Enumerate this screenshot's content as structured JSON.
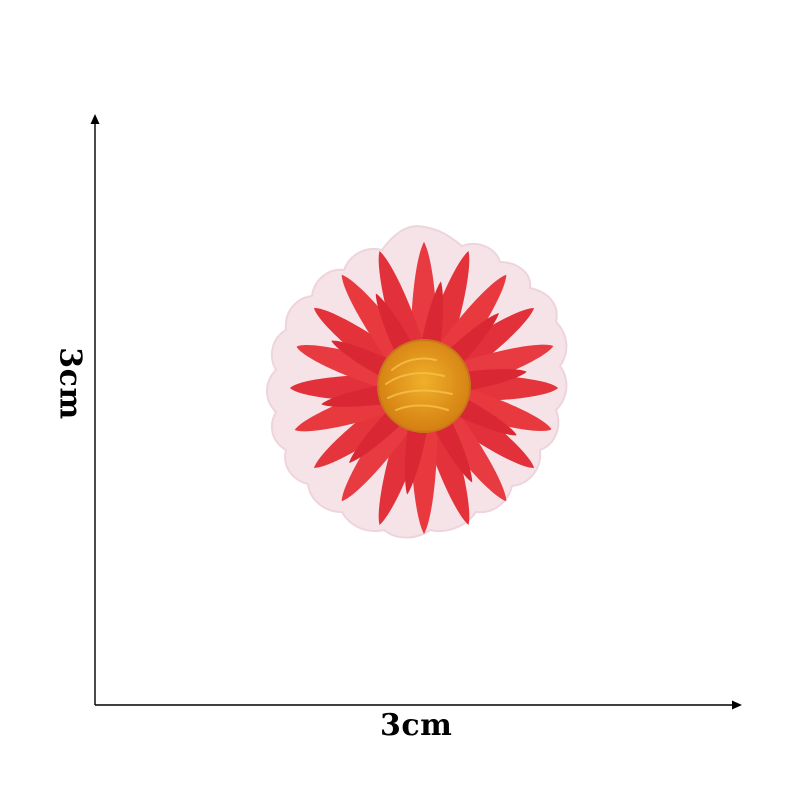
{
  "dimension": {
    "width_label": "3cm",
    "height_label": "3cm"
  },
  "colors": {
    "petal": "#e8363f",
    "petal_shadow": "#c8232d",
    "center": "#e7a21c",
    "center_dark": "#d07f14",
    "backing": "#f6e6ea",
    "axis": "#000000"
  }
}
